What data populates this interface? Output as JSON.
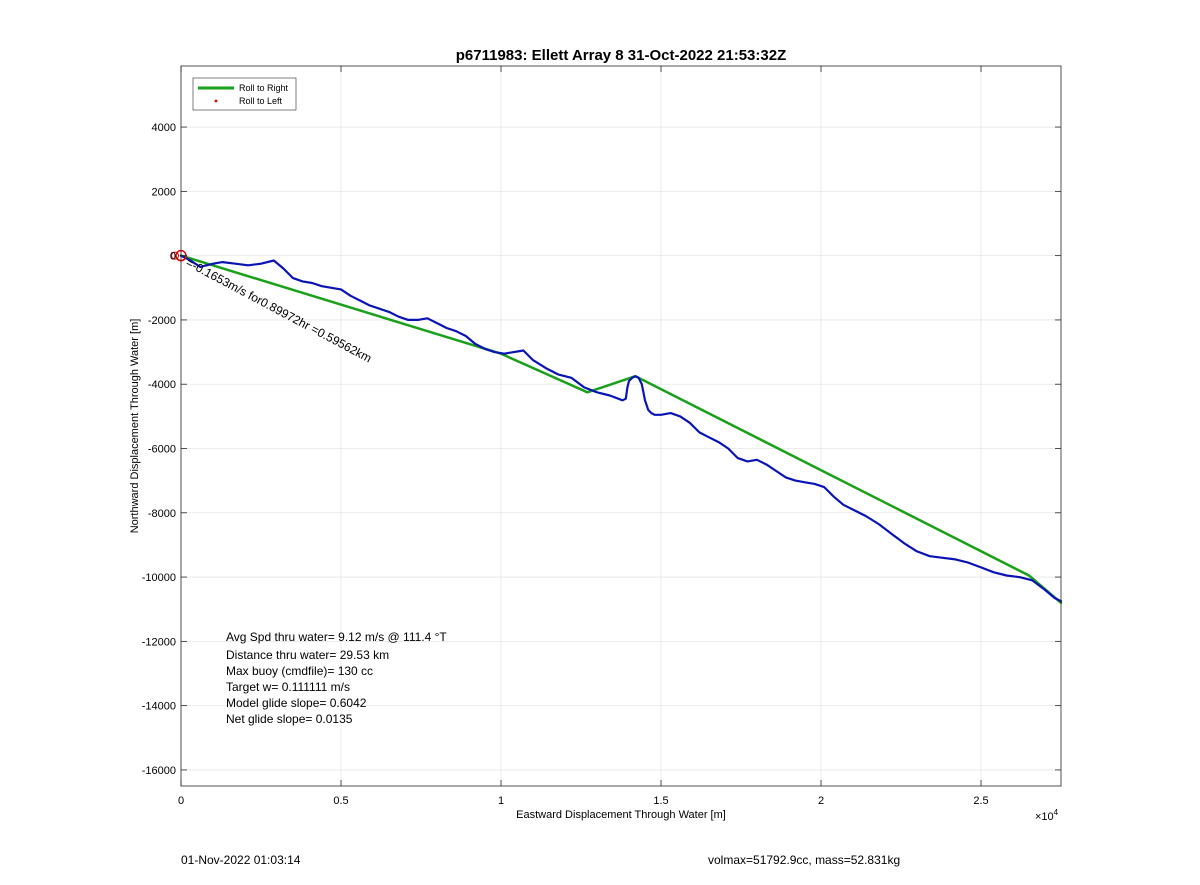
{
  "chart_data": {
    "type": "line",
    "title": "p6711983: Ellett Array 8 31-Oct-2022 21:53:32Z",
    "xlabel": "Eastward Displacement Through Water [m]",
    "ylabel": "Northward Displacement Through Water [m]",
    "x_multiplier_label": "×10",
    "x_multiplier_exp": "4",
    "xlim": [
      0,
      27500
    ],
    "ylim": [
      -16500,
      5900
    ],
    "xticks": [
      0,
      5000,
      10000,
      15000,
      20000,
      25000
    ],
    "xtick_labels": [
      "0",
      "0.5",
      "1",
      "1.5",
      "2",
      "2.5"
    ],
    "yticks": [
      -16000,
      -14000,
      -12000,
      -10000,
      -8000,
      -6000,
      -4000,
      -2000,
      0,
      2000,
      4000
    ],
    "ytick_labels": [
      "-16000",
      "-14000",
      "-12000",
      "-10000",
      "-8000",
      "-6000",
      "-4000",
      "-2000",
      "0",
      "2000",
      "4000"
    ],
    "grid": true,
    "legend_position": "top-left",
    "legend": [
      {
        "label": "Roll to Right",
        "color": "#1aa01a",
        "style": "line"
      },
      {
        "label": "Roll to Left",
        "color": "#dd0000",
        "style": "dot"
      }
    ],
    "series": [
      {
        "color": "#1aa01a",
        "x": [
          0,
          10000,
          12700,
          14200,
          26500,
          27500
        ],
        "y": [
          0,
          -3050,
          -4250,
          -3750,
          -9950,
          -10800
        ]
      },
      {
        "color": "#0a14b4",
        "x": [
          0,
          300,
          600,
          1000,
          1300,
          1700,
          2100,
          2500,
          2900,
          3200,
          3500,
          3800,
          4100,
          4400,
          4700,
          5000,
          5300,
          5600,
          5900,
          6200,
          6500,
          6800,
          7100,
          7400,
          7700,
          8000,
          8300,
          8600,
          8900,
          9200,
          9500,
          9800,
          10100,
          10400,
          10700,
          11000,
          11400,
          11800,
          12200,
          12600,
          13000,
          13400,
          13800,
          13900,
          13950,
          14000,
          14100,
          14200,
          14300,
          14400,
          14500,
          14600,
          14700,
          14800,
          15000,
          15300,
          15600,
          15900,
          16200,
          16500,
          16800,
          17100,
          17400,
          17700,
          18000,
          18300,
          18600,
          18900,
          19200,
          19500,
          19800,
          20100,
          20400,
          20700,
          21000,
          21400,
          21800,
          22200,
          22600,
          23000,
          23400,
          23800,
          24200,
          24600,
          25000,
          25400,
          25800,
          26200,
          26600,
          27000,
          27300,
          27500
        ],
        "y": [
          0,
          -150,
          -350,
          -250,
          -200,
          -250,
          -300,
          -250,
          -150,
          -400,
          -700,
          -800,
          -850,
          -950,
          -1000,
          -1050,
          -1250,
          -1400,
          -1550,
          -1650,
          -1750,
          -1900,
          -2000,
          -2000,
          -1950,
          -2100,
          -2250,
          -2350,
          -2500,
          -2750,
          -2900,
          -3000,
          -3050,
          -3000,
          -2950,
          -3250,
          -3500,
          -3700,
          -3800,
          -4100,
          -4250,
          -4350,
          -4500,
          -4450,
          -4100,
          -3900,
          -3800,
          -3750,
          -3800,
          -4000,
          -4500,
          -4800,
          -4900,
          -4950,
          -4950,
          -4900,
          -5000,
          -5200,
          -5500,
          -5650,
          -5800,
          -6000,
          -6300,
          -6400,
          -6350,
          -6500,
          -6700,
          -6900,
          -7000,
          -7050,
          -7100,
          -7200,
          -7500,
          -7750,
          -7900,
          -8100,
          -8350,
          -8650,
          -8950,
          -9200,
          -9350,
          -9400,
          -9450,
          -9550,
          -9700,
          -9850,
          -9950,
          -10000,
          -10100,
          -10400,
          -10650,
          -10750
        ]
      }
    ],
    "start_marker": {
      "x": 0,
      "y": 0,
      "color": "#dd0000"
    },
    "annotations": {
      "rotated_text": "=-0.1653m/s for0.89972hr =0.59562km",
      "stats": [
        "Avg Spd thru water=  9.12 m/s @ 111.4 °T",
        "Distance thru water= 29.53 km",
        "Max buoy (cmdfile)= 130 cc",
        "Target w= 0.111111 m/s",
        "Model glide slope= 0.6042",
        "Net glide slope= 0.0135"
      ]
    }
  },
  "footer": {
    "timestamp": "01-Nov-2022 01:03:14",
    "vol_mass": "volmax=51792.9cc, mass=52.831kg"
  }
}
